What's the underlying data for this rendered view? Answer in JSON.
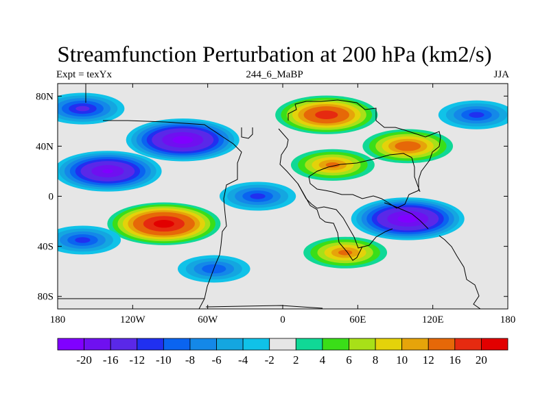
{
  "chart_data": {
    "type": "heatmap",
    "title": "Streamfunction Perturbation at 200 hPa (km2/s)",
    "subtitle_left": "Expt = texYx",
    "subtitle_center": "244_6_MaBP",
    "subtitle_right": "JJA",
    "xlim": [
      -180,
      180
    ],
    "ylim": [
      -90,
      90
    ],
    "x_ticks": [
      -180,
      -120,
      -60,
      0,
      60,
      120,
      180
    ],
    "x_tick_labels": [
      "180",
      "120W",
      "60W",
      "0",
      "60E",
      "120E",
      "180"
    ],
    "y_ticks": [
      80,
      40,
      0,
      -40,
      -80
    ],
    "y_tick_labels": [
      "80N",
      "40N",
      "0",
      "40S",
      "80S"
    ],
    "contour_levels": [
      -20,
      -16,
      -12,
      -10,
      -8,
      -6,
      -4,
      -2,
      2,
      4,
      6,
      8,
      10,
      12,
      16,
      20
    ],
    "colorbar_labels": [
      "-20",
      "-16",
      "-12",
      "-10",
      "-8",
      "-6",
      "-4",
      "-2",
      "2",
      "4",
      "6",
      "8",
      "10",
      "12",
      "16",
      "20"
    ],
    "colors": [
      "#8000ff",
      "#6f10f0",
      "#5a28e8",
      "#2030f0",
      "#0a64f0",
      "#1488e8",
      "#14a6e0",
      "#10c2e8",
      "#e6e6e6",
      "#10d896",
      "#3ade18",
      "#a8e018",
      "#e4d20a",
      "#e6a40a",
      "#e66808",
      "#e62a10",
      "#e20000"
    ],
    "features": [
      {
        "type": "max",
        "lon": -95,
        "lat": -22,
        "value": 22
      },
      {
        "type": "max",
        "lon": 35,
        "lat": 65,
        "value": 18
      },
      {
        "type": "max",
        "lon": 100,
        "lat": 40,
        "value": 14
      },
      {
        "type": "max",
        "lon": 50,
        "lat": -45,
        "value": 12
      },
      {
        "type": "max",
        "lon": 40,
        "lat": 25,
        "value": 12
      },
      {
        "type": "min",
        "lon": -140,
        "lat": 20,
        "value": -20
      },
      {
        "type": "min",
        "lon": -80,
        "lat": 45,
        "value": -22
      },
      {
        "type": "min",
        "lon": 100,
        "lat": -18,
        "value": -22
      },
      {
        "type": "min",
        "lon": -160,
        "lat": 70,
        "value": -12
      },
      {
        "type": "min",
        "lon": 155,
        "lat": 65,
        "value": -10
      },
      {
        "type": "min",
        "lon": -55,
        "lat": -58,
        "value": -9
      },
      {
        "type": "min",
        "lon": -20,
        "lat": 0,
        "value": -10
      },
      {
        "type": "min",
        "lon": -160,
        "lat": -35,
        "value": -10
      }
    ]
  }
}
